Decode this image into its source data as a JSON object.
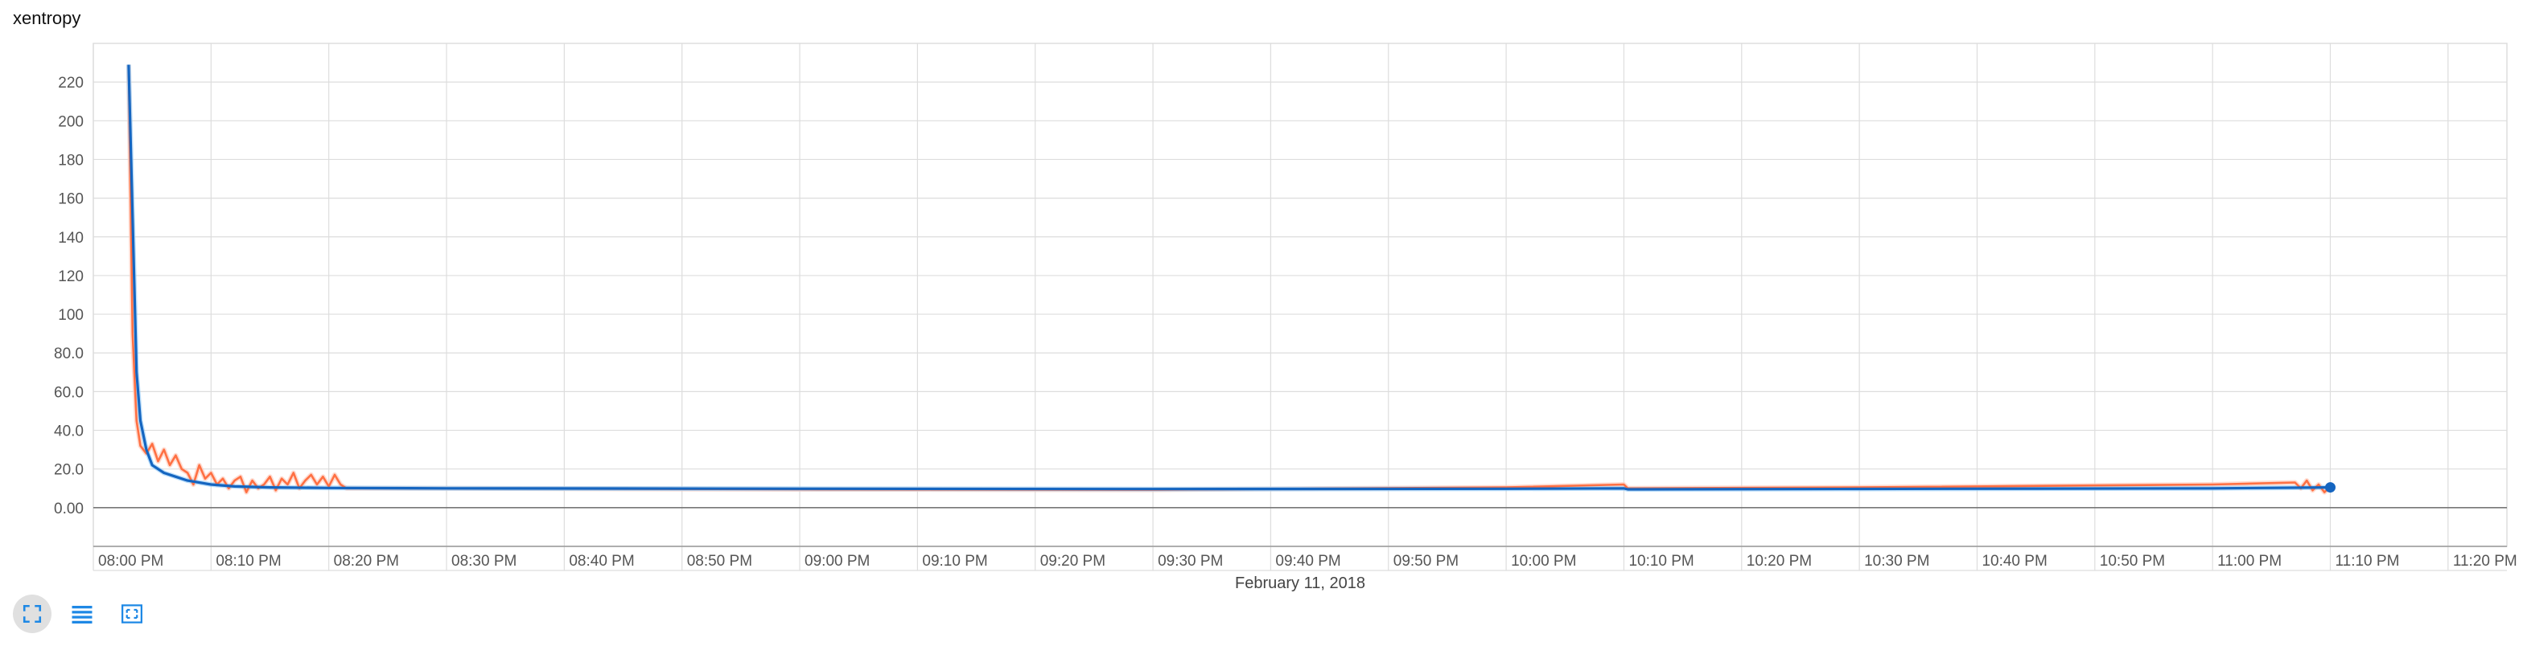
{
  "card": {
    "title": "xentropy"
  },
  "colors": {
    "series_raw": "#ff7043",
    "series_raw_faint": "#ffccbc",
    "series_smoothed": "#1565c0",
    "series_smoothed_faint": "#90caf9",
    "grid": "#dddddd",
    "icon": "#1e88e5"
  },
  "toolbar": [
    {
      "icon": "expand-icon",
      "active": true
    },
    {
      "icon": "list-icon",
      "active": false
    },
    {
      "icon": "fit-domain-icon",
      "active": false
    }
  ],
  "chart_data": {
    "type": "line",
    "title": "xentropy",
    "xlabel": "February 11, 2018",
    "ylabel": "",
    "x_scale": "time",
    "xlim": [
      "2018-02-11T20:00",
      "2018-02-11T23:25"
    ],
    "ylim": [
      -20,
      240
    ],
    "grid": true,
    "x_ticks": [
      "08:00 PM",
      "08:10 PM",
      "08:20 PM",
      "08:30 PM",
      "08:40 PM",
      "08:50 PM",
      "09:00 PM",
      "09:10 PM",
      "09:20 PM",
      "09:30 PM",
      "09:40 PM",
      "09:50 PM",
      "10:00 PM",
      "10:10 PM",
      "10:20 PM",
      "10:30 PM",
      "10:40 PM",
      "10:50 PM",
      "11:00 PM",
      "11:10 PM",
      "11:20 PM"
    ],
    "y_ticks": [
      "0.00",
      "20.0",
      "40.0",
      "60.0",
      "80.0",
      "100",
      "120",
      "140",
      "160",
      "180",
      "200",
      "220"
    ],
    "y_tick_values": [
      0,
      20,
      40,
      60,
      80,
      100,
      120,
      140,
      160,
      180,
      200,
      220
    ],
    "series": [
      {
        "role": "raw",
        "x": [
          "2018-02-11T20:03:00",
          "2018-02-11T20:03:20",
          "2018-02-11T20:03:40",
          "2018-02-11T20:04:00",
          "2018-02-11T20:04:30",
          "2018-02-11T20:05:00",
          "2018-02-11T20:05:30",
          "2018-02-11T20:06:00",
          "2018-02-11T20:06:30",
          "2018-02-11T20:07:00",
          "2018-02-11T20:07:30",
          "2018-02-11T20:08:00",
          "2018-02-11T20:08:30",
          "2018-02-11T20:09:00",
          "2018-02-11T20:09:30",
          "2018-02-11T20:10:00",
          "2018-02-11T20:10:30",
          "2018-02-11T20:11:00",
          "2018-02-11T20:11:30",
          "2018-02-11T20:12:00",
          "2018-02-11T20:12:30",
          "2018-02-11T20:13:00",
          "2018-02-11T20:13:30",
          "2018-02-11T20:14:00",
          "2018-02-11T20:14:30",
          "2018-02-11T20:15:00",
          "2018-02-11T20:15:30",
          "2018-02-11T20:16:00",
          "2018-02-11T20:16:30",
          "2018-02-11T20:17:00",
          "2018-02-11T20:17:30",
          "2018-02-11T20:18:00",
          "2018-02-11T20:18:30",
          "2018-02-11T20:19:00",
          "2018-02-11T20:19:30",
          "2018-02-11T20:20:00",
          "2018-02-11T20:20:30",
          "2018-02-11T20:21:00",
          "2018-02-11T20:21:30",
          "2018-02-11T20:30:00",
          "2018-02-11T21:00:00",
          "2018-02-11T21:30:00",
          "2018-02-11T22:00:00",
          "2018-02-11T22:10:00",
          "2018-02-11T22:10:20",
          "2018-02-11T22:30:00",
          "2018-02-11T23:00:00",
          "2018-02-11T23:07:00",
          "2018-02-11T23:07:30",
          "2018-02-11T23:08:00",
          "2018-02-11T23:08:30",
          "2018-02-11T23:09:00",
          "2018-02-11T23:09:30",
          "2018-02-11T23:10:00"
        ],
        "values": [
          229,
          90,
          45,
          32,
          28,
          33,
          24,
          30,
          22,
          27,
          20,
          18,
          12,
          22,
          15,
          18,
          12,
          15,
          10,
          14,
          16,
          8,
          14,
          10,
          12,
          16,
          9,
          15,
          12,
          18,
          10,
          14,
          17,
          12,
          16,
          11,
          17,
          12,
          10,
          10,
          9.5,
          9.3,
          10.5,
          12,
          10,
          10.5,
          12,
          13,
          10,
          14,
          9,
          12,
          8,
          11
        ]
      },
      {
        "role": "smoothed",
        "x": [
          "2018-02-11T20:03:00",
          "2018-02-11T20:03:20",
          "2018-02-11T20:03:40",
          "2018-02-11T20:04:00",
          "2018-02-11T20:04:30",
          "2018-02-11T20:05:00",
          "2018-02-11T20:06:00",
          "2018-02-11T20:07:00",
          "2018-02-11T20:08:00",
          "2018-02-11T20:10:00",
          "2018-02-11T20:12:00",
          "2018-02-11T20:15:00",
          "2018-02-11T20:20:00",
          "2018-02-11T20:30:00",
          "2018-02-11T21:00:00",
          "2018-02-11T21:30:00",
          "2018-02-11T22:00:00",
          "2018-02-11T22:10:00",
          "2018-02-11T22:10:20",
          "2018-02-11T22:30:00",
          "2018-02-11T23:00:00",
          "2018-02-11T23:10:00"
        ],
        "values": [
          229,
          150,
          70,
          45,
          30,
          22,
          18,
          16,
          14,
          12,
          11,
          10.5,
          10.2,
          10,
          9.8,
          9.6,
          9.8,
          10,
          9.5,
          9.7,
          10,
          10.5
        ]
      }
    ]
  }
}
